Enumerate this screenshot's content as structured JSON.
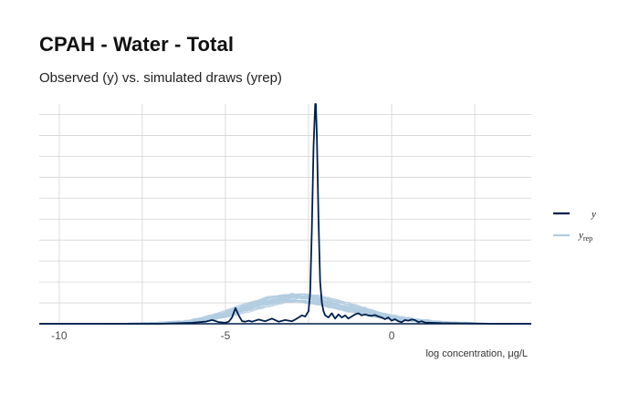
{
  "title": "CPAH - Water - Total",
  "subtitle": "Observed (y) vs. simulated draws (yrep)",
  "colors": {
    "y": "#011f4b",
    "yrep": "#b3cde0",
    "grid": "#d4d4d4",
    "text": "#4d4d4d"
  },
  "chart_data": {
    "type": "line",
    "title": "CPAH - Water - Total",
    "subtitle": "Observed (y) vs. simulated draws (yrep)",
    "xlabel": "log concentration, μg/L",
    "ylabel": "",
    "xlim": [
      -10.6,
      4.2
    ],
    "ylim": [
      0,
      1.05
    ],
    "x_ticks": [
      -10,
      -5,
      0
    ],
    "x_tick_labels": [
      "-10",
      "-5",
      "0"
    ],
    "y_axis_labels_shown": false,
    "grid": true,
    "legend_position": "right",
    "series": [
      {
        "name": "y",
        "x": [
          -10.6,
          -7.0,
          -6.0,
          -5.6,
          -5.4,
          -5.2,
          -5.0,
          -4.9,
          -4.8,
          -4.7,
          -4.6,
          -4.5,
          -4.4,
          -4.3,
          -4.2,
          -4.0,
          -3.8,
          -3.6,
          -3.4,
          -3.2,
          -3.0,
          -2.9,
          -2.8,
          -2.7,
          -2.6,
          -2.5,
          -2.45,
          -2.4,
          -2.35,
          -2.3,
          -2.28,
          -2.25,
          -2.2,
          -2.15,
          -2.1,
          -2.05,
          -2.0,
          -1.9,
          -1.8,
          -1.7,
          -1.6,
          -1.5,
          -1.4,
          -1.3,
          -1.2,
          -1.1,
          -1.0,
          -0.9,
          -0.8,
          -0.7,
          -0.6,
          -0.5,
          -0.4,
          -0.3,
          -0.2,
          -0.1,
          0.0,
          0.1,
          0.2,
          0.3,
          0.4,
          0.5,
          0.6,
          0.7,
          0.8,
          0.9,
          1.0,
          1.2,
          1.5,
          2.0,
          3.0,
          4.2
        ],
        "y": [
          0.0,
          0.0,
          0.005,
          0.01,
          0.018,
          0.008,
          0.005,
          0.01,
          0.03,
          0.075,
          0.04,
          0.012,
          0.01,
          0.015,
          0.01,
          0.02,
          0.012,
          0.025,
          0.01,
          0.018,
          0.012,
          0.02,
          0.03,
          0.04,
          0.035,
          0.06,
          0.15,
          0.45,
          0.85,
          1.05,
          1.05,
          0.9,
          0.5,
          0.2,
          0.1,
          0.06,
          0.04,
          0.03,
          0.05,
          0.025,
          0.045,
          0.03,
          0.04,
          0.025,
          0.035,
          0.045,
          0.05,
          0.04,
          0.045,
          0.04,
          0.038,
          0.042,
          0.035,
          0.03,
          0.022,
          0.03,
          0.015,
          0.022,
          0.012,
          0.008,
          0.018,
          0.015,
          0.02,
          0.018,
          0.008,
          0.012,
          0.006,
          0.005,
          0.003,
          0.002,
          0.0,
          0.0
        ]
      },
      {
        "name": "y_rep",
        "draws": 40,
        "x": [
          -10.6,
          -9.0,
          -8.0,
          -7.0,
          -6.0,
          -5.5,
          -5.0,
          -4.5,
          -4.0,
          -3.5,
          -3.0,
          -2.5,
          -2.0,
          -1.5,
          -1.0,
          -0.5,
          0.0,
          0.5,
          1.0,
          1.5,
          2.0,
          2.5,
          3.0,
          4.2
        ],
        "y": [
          0.0,
          0.0,
          0.001,
          0.004,
          0.012,
          0.025,
          0.045,
          0.07,
          0.095,
          0.115,
          0.125,
          0.12,
          0.105,
          0.085,
          0.065,
          0.045,
          0.03,
          0.02,
          0.012,
          0.007,
          0.004,
          0.002,
          0.001,
          0.0
        ]
      }
    ]
  },
  "legend": {
    "items": [
      {
        "label": "y",
        "sub": ""
      },
      {
        "label": "y",
        "sub": "rep"
      }
    ]
  }
}
